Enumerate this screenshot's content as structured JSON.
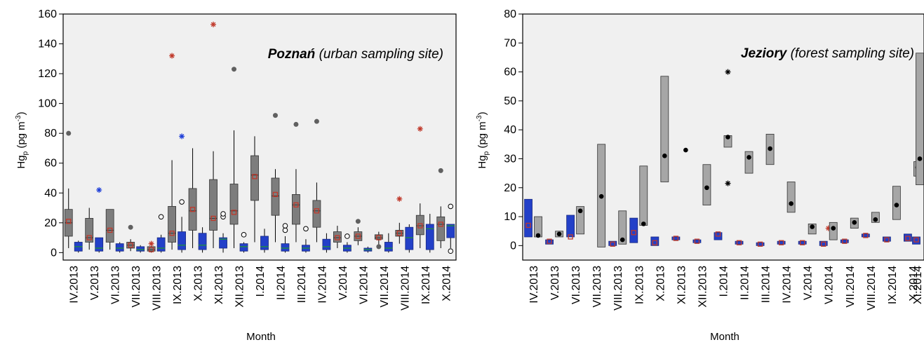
{
  "chart_data": [
    {
      "type": "box",
      "title_bold": "Poznań",
      "title_rest": " (urban sampling site)",
      "xlabel": "Month",
      "ylabel_main": "Hg",
      "ylabel_sub": "p",
      "ylabel_unit": " (pg m",
      "ylabel_exp": "-3",
      "ylabel_close": ")",
      "ylim": [
        -5,
        160
      ],
      "yticks": [
        "0",
        "20",
        "40",
        "60",
        "80",
        "100",
        "120",
        "140",
        "160"
      ],
      "categories": [
        "IV.2013",
        "V.2013",
        "VI.2013",
        "VII.2013",
        "VIII.2013",
        "IX.2013",
        "X.2013",
        "XI.2013",
        "XII.2013",
        "I.2014",
        "II.2014",
        "III.2014",
        "IV.2014",
        "V.2014",
        "VI.2014",
        "VII.2014",
        "VIII.2014",
        "IX.2014",
        "X.2014"
      ],
      "grey_boxes": [
        {
          "q1": 11,
          "q3": 29,
          "median": 20,
          "mean": 21,
          "wlo": 3,
          "whi": 43,
          "out": [
            {
              "v": 80,
              "k": "dot"
            }
          ]
        },
        {
          "q1": 7,
          "q3": 23,
          "median": 10,
          "mean": 10,
          "wlo": 2,
          "whi": 30,
          "out": []
        },
        {
          "q1": 7,
          "q3": 29,
          "median": 15,
          "mean": 15,
          "wlo": 2,
          "whi": 29,
          "out": []
        },
        {
          "q1": 3,
          "q3": 7,
          "median": 5,
          "mean": 5,
          "wlo": 1,
          "whi": 9,
          "out": [
            {
              "v": 17,
              "k": "dot"
            }
          ]
        },
        {
          "q1": 1,
          "q3": 4,
          "median": 2,
          "mean": 2,
          "wlo": 0,
          "whi": 6,
          "out": [
            {
              "v": 6,
              "k": "redstar"
            }
          ]
        },
        {
          "q1": 7,
          "q3": 31,
          "median": 13,
          "mean": 13,
          "wlo": 2,
          "whi": 62,
          "out": [
            {
              "v": 132,
              "k": "redstar"
            }
          ]
        },
        {
          "q1": 15,
          "q3": 43,
          "median": 28,
          "mean": 29,
          "wlo": 3,
          "whi": 70,
          "out": []
        },
        {
          "q1": 15,
          "q3": 49,
          "median": 23,
          "mean": 23,
          "wlo": 3,
          "whi": 68,
          "out": [
            {
              "v": 153,
              "k": "redstar"
            }
          ]
        },
        {
          "q1": 19,
          "q3": 46,
          "median": 28,
          "mean": 27,
          "wlo": 3,
          "whi": 82,
          "out": [
            {
              "v": 123,
              "k": "dot"
            }
          ]
        },
        {
          "q1": 35,
          "q3": 65,
          "median": 52,
          "mean": 51,
          "wlo": 7,
          "whi": 78,
          "out": []
        },
        {
          "q1": 25,
          "q3": 50,
          "median": 38,
          "mean": 39,
          "wlo": 7,
          "whi": 56,
          "out": [
            {
              "v": 92,
              "k": "dot"
            }
          ]
        },
        {
          "q1": 19,
          "q3": 39,
          "median": 32,
          "mean": 32,
          "wlo": 7,
          "whi": 56,
          "out": [
            {
              "v": 86,
              "k": "dot"
            }
          ]
        },
        {
          "q1": 17,
          "q3": 35,
          "median": 28,
          "mean": 28,
          "wlo": 7,
          "whi": 47,
          "out": [
            {
              "v": 88,
              "k": "dot"
            }
          ]
        },
        {
          "q1": 7,
          "q3": 14,
          "median": 10,
          "mean": 10,
          "wlo": 3,
          "whi": 18,
          "out": []
        },
        {
          "q1": 8,
          "q3": 14,
          "median": 11,
          "mean": 11,
          "wlo": 5,
          "whi": 17,
          "out": [
            {
              "v": 21,
              "k": "dot"
            }
          ]
        },
        {
          "q1": 9,
          "q3": 12,
          "median": 10,
          "mean": 10,
          "wlo": 4,
          "whi": 14,
          "out": [
            {
              "v": 4,
              "k": "dot"
            }
          ]
        },
        {
          "q1": 11,
          "q3": 15,
          "median": 13,
          "mean": 13,
          "wlo": 6,
          "whi": 20,
          "out": [
            {
              "v": 36,
              "k": "redstar"
            }
          ]
        },
        {
          "q1": 12,
          "q3": 25,
          "median": 18,
          "mean": 18,
          "wlo": 3,
          "whi": 33,
          "out": [
            {
              "v": 83,
              "k": "redstar"
            }
          ]
        },
        {
          "q1": 8,
          "q3": 24,
          "median": 19,
          "mean": 19,
          "wlo": 3,
          "whi": 31,
          "out": [
            {
              "v": 55,
              "k": "dot"
            }
          ]
        }
      ],
      "blue_boxes": [
        {
          "q1": 1,
          "q3": 7,
          "median": 4,
          "wlo": 0,
          "whi": 8,
          "out": []
        },
        {
          "q1": 1,
          "q3": 10,
          "median": 3,
          "wlo": 0,
          "whi": 10,
          "out": [
            {
              "v": 42,
              "k": "bluestar"
            }
          ]
        },
        {
          "q1": 1,
          "q3": 6,
          "median": 3,
          "wlo": 0,
          "whi": 7,
          "out": []
        },
        {
          "q1": 1,
          "q3": 4,
          "median": 2,
          "wlo": 0,
          "whi": 5,
          "out": []
        },
        {
          "q1": 1,
          "q3": 10,
          "median": 3,
          "wlo": 0,
          "whi": 12,
          "out": [
            {
              "v": 24,
              "k": "open"
            }
          ]
        },
        {
          "q1": 2,
          "q3": 14,
          "median": 5,
          "wlo": 0,
          "whi": 24,
          "out": [
            {
              "v": 34,
              "k": "open"
            },
            {
              "v": 78,
              "k": "bluestar"
            }
          ]
        },
        {
          "q1": 2,
          "q3": 13,
          "median": 5,
          "wlo": 0,
          "whi": 17,
          "out": []
        },
        {
          "q1": 3,
          "q3": 10,
          "median": 9,
          "wlo": 0,
          "whi": 13,
          "out": [
            {
              "v": 24,
              "k": "open"
            },
            {
              "v": 26,
              "k": "open"
            }
          ]
        },
        {
          "q1": 1,
          "q3": 6,
          "median": 4,
          "wlo": 0,
          "whi": 7,
          "out": [
            {
              "v": 12,
              "k": "open"
            }
          ]
        },
        {
          "q1": 2,
          "q3": 11,
          "median": 4,
          "wlo": 0,
          "whi": 16,
          "out": []
        },
        {
          "q1": 1,
          "q3": 6,
          "median": 3,
          "wlo": 0,
          "whi": 11,
          "out": [
            {
              "v": 15,
              "k": "open"
            },
            {
              "v": 18,
              "k": "open"
            }
          ]
        },
        {
          "q1": 1,
          "q3": 5,
          "median": 3,
          "wlo": 0,
          "whi": 9,
          "out": [
            {
              "v": 16,
              "k": "open"
            }
          ]
        },
        {
          "q1": 2,
          "q3": 9,
          "median": 4,
          "wlo": 0,
          "whi": 13,
          "out": []
        },
        {
          "q1": 1,
          "q3": 5,
          "median": 3,
          "wlo": 0,
          "whi": 7,
          "out": [
            {
              "v": 11,
              "k": "open"
            }
          ]
        },
        {
          "q1": 1,
          "q3": 3,
          "median": 2,
          "wlo": 0,
          "whi": 4,
          "out": []
        },
        {
          "q1": 1,
          "q3": 7,
          "median": 3,
          "wlo": 0,
          "whi": 13,
          "out": []
        },
        {
          "q1": 2,
          "q3": 17,
          "median": 10,
          "wlo": 0,
          "whi": 19,
          "out": []
        },
        {
          "q1": 2,
          "q3": 19,
          "median": 16,
          "wlo": 0,
          "whi": 26,
          "out": []
        },
        {
          "q1": 10,
          "q3": 19,
          "median": 18,
          "wlo": 3,
          "whi": 19,
          "out": [
            {
              "v": 31,
              "k": "open"
            },
            {
              "v": 1,
              "k": "open"
            }
          ]
        }
      ]
    },
    {
      "type": "box",
      "title_bold": "Jeziory",
      "title_rest": " (forest sampling site)",
      "xlabel": "Month",
      "ylabel_main": "Hg",
      "ylabel_sub": "p",
      "ylabel_unit": " (pg m",
      "ylabel_exp": "-3",
      "ylabel_close": ")",
      "ylim": [
        -5,
        80
      ],
      "yticks": [
        "0",
        "10",
        "20",
        "30",
        "40",
        "50",
        "60",
        "70",
        "80"
      ],
      "categories": [
        "IV.2013",
        "V.2013",
        "VI.2013",
        "VII.2013",
        "VIII.2013",
        "IX.2013",
        "X.2013",
        "XI.2013",
        "XII.2013",
        "I.2014",
        "II.2014",
        "III.2014",
        "IV.2014",
        "V.2014",
        "VI.2014",
        "VII.2014",
        "VIII.2014",
        "IX.2014",
        "X.2014",
        "XI.2014"
      ],
      "grey_boxes": [
        {
          "lo": 3,
          "hi": 10,
          "mean": 3.5
        },
        {
          "lo": 3,
          "hi": 5,
          "mean": 4
        },
        {
          "lo": 4,
          "hi": 13.5,
          "mean": 12
        },
        {
          "lo": -0.5,
          "hi": 35,
          "mean": 17
        },
        {
          "lo": 0.5,
          "hi": 12,
          "mean": 2
        },
        {
          "lo": 7,
          "hi": 27.5,
          "mean": 7.5
        },
        {
          "lo": 22,
          "hi": 58.5,
          "mean": 31
        },
        {
          "lo": null,
          "hi": null,
          "mean": 33
        },
        {
          "lo": 14,
          "hi": 28,
          "mean": 20
        },
        {
          "lo": 34,
          "hi": 38,
          "mean": 37.5,
          "stars": [
            60,
            21.5
          ]
        },
        {
          "lo": 25,
          "hi": 32.5,
          "mean": 30.5
        },
        {
          "lo": 28,
          "hi": 38.5,
          "mean": 33.5
        },
        {
          "lo": 11.5,
          "hi": 22,
          "mean": 14.5
        },
        {
          "lo": 4,
          "hi": 7.5,
          "mean": 6.5
        },
        {
          "lo": 2,
          "hi": 8,
          "mean": 6
        },
        {
          "lo": 6,
          "hi": 9.5,
          "mean": 8
        },
        {
          "lo": 8,
          "hi": 11.5,
          "mean": 9
        },
        {
          "lo": 9,
          "hi": 20.5,
          "mean": 14
        },
        {
          "lo": 24,
          "hi": 29,
          "mean": 27
        },
        {
          "lo": 21,
          "hi": 66.5,
          "mean": 30
        }
      ],
      "blue_boxes": [
        {
          "q1": 3,
          "q3": 16,
          "mean": 7
        },
        {
          "q1": 0.5,
          "q3": 2,
          "mean": 1.5
        },
        {
          "q1": 3,
          "q3": 10.5,
          "mean": 3
        },
        {
          "q1": null,
          "q3": null,
          "mean": null
        },
        {
          "q1": 0,
          "q3": 1.5,
          "mean": 0.5
        },
        {
          "q1": 1,
          "q3": 9.5,
          "mean": 4.5
        },
        {
          "q1": 0,
          "q3": 3,
          "mean": 1
        },
        {
          "q1": 2,
          "q3": 3,
          "mean": 2.5
        },
        {
          "q1": 1,
          "q3": 2,
          "mean": 1.5
        },
        {
          "q1": 2,
          "q3": 4.5,
          "mean": 4
        },
        {
          "q1": 0.5,
          "q3": 1.5,
          "mean": 1
        },
        {
          "q1": 0,
          "q3": 1,
          "mean": 0.5
        },
        {
          "q1": 0.5,
          "q3": 1.5,
          "mean": 1
        },
        {
          "q1": 0.5,
          "q3": 1.5,
          "mean": 1
        },
        {
          "q1": 0,
          "q3": 1.5,
          "mean": 0.5,
          "stars": [
            6
          ]
        },
        {
          "q1": 1,
          "q3": 2,
          "mean": 1.5
        },
        {
          "q1": 3,
          "q3": 4,
          "mean": 3.5
        },
        {
          "q1": 1.5,
          "q3": 3,
          "mean": 2
        },
        {
          "q1": 1.5,
          "q3": 4,
          "mean": 2.5
        },
        {
          "q1": 0.5,
          "q3": 3,
          "mean": 2
        }
      ]
    }
  ],
  "colors": {
    "plot_bg": "#f0f0f0",
    "grey_box": "#7d7d7d",
    "grey_box_right": "#a6a6a6",
    "blue_box": "#2340c8",
    "green_median": "#1f8a4a",
    "mean_marker": "#c0392b",
    "outlier_grey": "#606060",
    "blue_star": "#1f3fd8"
  }
}
